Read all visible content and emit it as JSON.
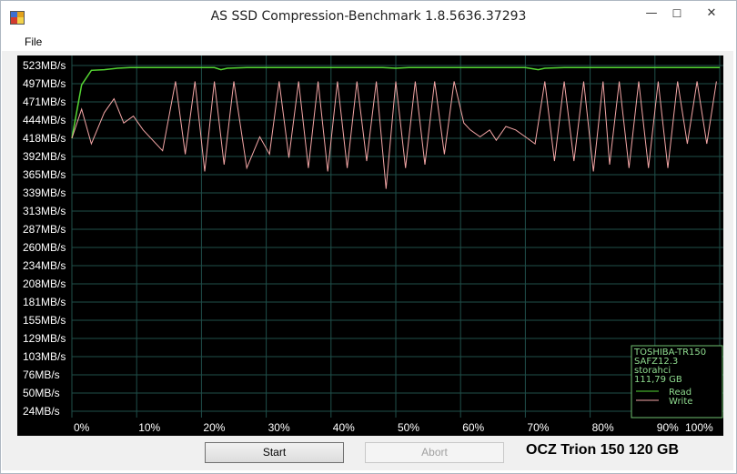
{
  "window": {
    "title": "AS SSD Compression-Benchmark 1.8.5636.37293",
    "minimize_glyph": "—",
    "maximize_glyph": "☐",
    "close_glyph": "✕",
    "app_icon": "app-icon"
  },
  "menu": {
    "file_label": "File"
  },
  "buttons": {
    "start_label": "Start",
    "abort_label": "Abort"
  },
  "drive_label": "OCZ Trion 150 120 GB",
  "legend": {
    "device": "TOSHIBA-TR150",
    "firmware": "SAFZ12.3",
    "driver": "storahci",
    "capacity": "111,79 GB"
  },
  "colors": {
    "plot_bg": "#000000",
    "grid": "#1f4f4a",
    "axis_text": "#ffffff",
    "read": "#55d633",
    "write": "#f4a6a6",
    "legend_text": "#8fdc8f",
    "legend_border": "#6fbf6f"
  },
  "chart_data": {
    "type": "line",
    "y_ticks": [
      "523MB/s",
      "497MB/s",
      "471MB/s",
      "444MB/s",
      "418MB/s",
      "392MB/s",
      "365MB/s",
      "339MB/s",
      "313MB/s",
      "287MB/s",
      "260MB/s",
      "234MB/s",
      "208MB/s",
      "181MB/s",
      "155MB/s",
      "129MB/s",
      "103MB/s",
      "76MB/s",
      "50MB/s",
      "24MB/s"
    ],
    "x_ticks": [
      "0%",
      "10%",
      "20%",
      "30%",
      "40%",
      "50%",
      "60%",
      "70%",
      "80%",
      "90%",
      "100%"
    ],
    "ylim": [
      0,
      535
    ],
    "xlim": [
      0,
      100
    ],
    "grid": true,
    "legend_position": "bottom-right",
    "series": [
      {
        "name": "Read",
        "x": [
          0,
          1.5,
          3,
          5,
          7,
          9,
          10,
          13,
          16,
          19,
          22,
          23,
          24,
          27,
          30,
          33,
          36,
          40,
          44,
          48,
          50,
          52,
          55,
          58,
          62,
          66,
          70,
          72,
          73,
          76,
          80,
          84,
          88,
          92,
          96,
          100
        ],
        "y": [
          418,
          495,
          516,
          517,
          519,
          520,
          520,
          520,
          520,
          520,
          520,
          517,
          519,
          520,
          520,
          520,
          520,
          520,
          520,
          520,
          519,
          520,
          520,
          520,
          520,
          520,
          520,
          517,
          519,
          520,
          520,
          520,
          520,
          520,
          520,
          520
        ]
      },
      {
        "name": "Write",
        "x": [
          0,
          1.5,
          3,
          5,
          6.5,
          8,
          9.5,
          11,
          14,
          16,
          17.5,
          19,
          20.5,
          22,
          23.5,
          25,
          27,
          29,
          30.5,
          32,
          33.5,
          35,
          36.5,
          38,
          39.5,
          41,
          42.5,
          44,
          45.5,
          47,
          48.5,
          50,
          51.5,
          53,
          54.5,
          56,
          57.5,
          59,
          60.5,
          61.5,
          63,
          64.5,
          65.5,
          67,
          68.5,
          70,
          71.5,
          73,
          74.5,
          76,
          77.5,
          79,
          80.5,
          82,
          83,
          84.5,
          86,
          87.5,
          89,
          90.5,
          92,
          93.5,
          95,
          96.5,
          98,
          99.5
        ],
        "y": [
          418,
          460,
          410,
          455,
          475,
          440,
          450,
          430,
          400,
          500,
          395,
          500,
          370,
          500,
          380,
          500,
          375,
          420,
          395,
          500,
          390,
          500,
          375,
          500,
          370,
          500,
          375,
          500,
          385,
          500,
          345,
          500,
          375,
          500,
          380,
          500,
          395,
          500,
          440,
          430,
          420,
          430,
          415,
          435,
          430,
          420,
          410,
          500,
          385,
          500,
          385,
          500,
          370,
          500,
          380,
          500,
          375,
          500,
          375,
          500,
          375,
          500,
          410,
          500,
          410,
          500
        ]
      }
    ]
  }
}
